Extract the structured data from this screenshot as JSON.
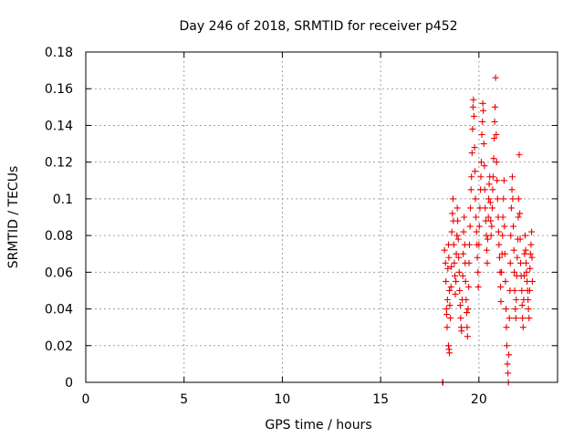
{
  "chart_data": {
    "type": "scatter",
    "title": "Day 246 of 2018, SRMTID for receiver p452",
    "xlabel": "GPS time / hours",
    "ylabel": "SRMTID / TECUs",
    "xlim": [
      0,
      24
    ],
    "ylim": [
      0,
      0.18
    ],
    "xticks": [
      0,
      5,
      10,
      15,
      20
    ],
    "xtick_labels": [
      "0",
      "5",
      "10",
      "15",
      "20"
    ],
    "yticks": [
      0,
      0.02,
      0.04,
      0.06,
      0.08,
      0.1,
      0.12,
      0.14,
      0.16,
      0.18
    ],
    "ytick_labels": [
      "0",
      "0.02",
      "0.04",
      "0.06",
      "0.08",
      "0.1",
      "0.12",
      "0.14",
      "0.16",
      "0.18"
    ],
    "grid": true,
    "marker": "plus",
    "color": "#ee0000",
    "series": [
      {
        "name": "SRMTID",
        "points": [
          [
            18.15,
            0.0
          ],
          [
            18.17,
            0.0
          ],
          [
            18.25,
            0.072
          ],
          [
            18.3,
            0.065
          ],
          [
            18.32,
            0.055
          ],
          [
            18.35,
            0.04
          ],
          [
            18.36,
            0.037
          ],
          [
            18.38,
            0.03
          ],
          [
            18.4,
            0.045
          ],
          [
            18.42,
            0.062
          ],
          [
            18.45,
            0.075
          ],
          [
            18.47,
            0.068
          ],
          [
            18.5,
            0.05
          ],
          [
            18.52,
            0.042
          ],
          [
            18.45,
            0.02
          ],
          [
            18.48,
            0.018
          ],
          [
            18.5,
            0.016
          ],
          [
            18.55,
            0.035
          ],
          [
            18.58,
            0.052
          ],
          [
            18.6,
            0.063
          ],
          [
            18.62,
            0.082
          ],
          [
            18.65,
            0.092
          ],
          [
            18.68,
            0.1
          ],
          [
            18.7,
            0.088
          ],
          [
            18.72,
            0.075
          ],
          [
            18.75,
            0.065
          ],
          [
            18.78,
            0.058
          ],
          [
            18.8,
            0.048
          ],
          [
            18.83,
            0.055
          ],
          [
            18.85,
            0.07
          ],
          [
            18.88,
            0.08
          ],
          [
            18.9,
            0.095
          ],
          [
            18.92,
            0.088
          ],
          [
            18.95,
            0.078
          ],
          [
            18.97,
            0.068
          ],
          [
            19.0,
            0.06
          ],
          [
            19.02,
            0.05
          ],
          [
            19.05,
            0.042
          ],
          [
            19.07,
            0.035
          ],
          [
            19.1,
            0.03
          ],
          [
            19.12,
            0.028
          ],
          [
            19.15,
            0.045
          ],
          [
            19.18,
            0.058
          ],
          [
            19.2,
            0.07
          ],
          [
            19.22,
            0.082
          ],
          [
            19.25,
            0.09
          ],
          [
            19.28,
            0.075
          ],
          [
            19.3,
            0.065
          ],
          [
            19.32,
            0.055
          ],
          [
            19.35,
            0.045
          ],
          [
            19.38,
            0.038
          ],
          [
            19.4,
            0.03
          ],
          [
            19.42,
            0.025
          ],
          [
            19.45,
            0.04
          ],
          [
            19.48,
            0.052
          ],
          [
            19.5,
            0.065
          ],
          [
            19.52,
            0.075
          ],
          [
            19.55,
            0.085
          ],
          [
            19.57,
            0.095
          ],
          [
            19.6,
            0.105
          ],
          [
            19.62,
            0.112
          ],
          [
            19.65,
            0.125
          ],
          [
            19.68,
            0.138
          ],
          [
            19.7,
            0.15
          ],
          [
            19.72,
            0.154
          ],
          [
            19.75,
            0.145
          ],
          [
            19.78,
            0.128
          ],
          [
            19.8,
            0.115
          ],
          [
            19.82,
            0.1
          ],
          [
            19.85,
            0.09
          ],
          [
            19.88,
            0.082
          ],
          [
            19.9,
            0.075
          ],
          [
            19.92,
            0.068
          ],
          [
            19.95,
            0.06
          ],
          [
            19.97,
            0.052
          ],
          [
            20.0,
            0.075
          ],
          [
            20.02,
            0.085
          ],
          [
            20.05,
            0.095
          ],
          [
            20.08,
            0.105
          ],
          [
            20.1,
            0.112
          ],
          [
            20.12,
            0.12
          ],
          [
            20.15,
            0.135
          ],
          [
            20.18,
            0.142
          ],
          [
            20.2,
            0.152
          ],
          [
            20.22,
            0.148
          ],
          [
            20.25,
            0.13
          ],
          [
            20.28,
            0.118
          ],
          [
            20.3,
            0.105
          ],
          [
            20.32,
            0.095
          ],
          [
            20.35,
            0.088
          ],
          [
            20.38,
            0.08
          ],
          [
            20.4,
            0.072
          ],
          [
            20.42,
            0.065
          ],
          [
            20.45,
            0.078
          ],
          [
            20.48,
            0.09
          ],
          [
            20.5,
            0.1
          ],
          [
            20.52,
            0.108
          ],
          [
            20.55,
            0.112
          ],
          [
            20.58,
            0.098
          ],
          [
            20.6,
            0.088
          ],
          [
            20.62,
            0.08
          ],
          [
            20.65,
            0.085
          ],
          [
            20.68,
            0.095
          ],
          [
            20.7,
            0.105
          ],
          [
            20.72,
            0.112
          ],
          [
            20.75,
            0.122
          ],
          [
            20.78,
            0.133
          ],
          [
            20.8,
            0.142
          ],
          [
            20.82,
            0.15
          ],
          [
            20.85,
            0.166
          ],
          [
            20.88,
            0.135
          ],
          [
            20.9,
            0.12
          ],
          [
            20.92,
            0.11
          ],
          [
            20.95,
            0.1
          ],
          [
            20.98,
            0.09
          ],
          [
            21.0,
            0.082
          ],
          [
            21.02,
            0.075
          ],
          [
            21.05,
            0.068
          ],
          [
            21.08,
            0.06
          ],
          [
            21.1,
            0.052
          ],
          [
            21.12,
            0.044
          ],
          [
            21.15,
            0.06
          ],
          [
            21.18,
            0.07
          ],
          [
            21.2,
            0.08
          ],
          [
            21.22,
            0.09
          ],
          [
            21.25,
            0.1
          ],
          [
            21.28,
            0.11
          ],
          [
            21.3,
            0.085
          ],
          [
            21.32,
            0.07
          ],
          [
            21.35,
            0.055
          ],
          [
            21.38,
            0.04
          ],
          [
            21.4,
            0.03
          ],
          [
            21.42,
            0.02
          ],
          [
            21.45,
            0.01
          ],
          [
            21.48,
            0.005
          ],
          [
            21.5,
            0.0
          ],
          [
            21.52,
            0.015
          ],
          [
            21.55,
            0.035
          ],
          [
            21.58,
            0.05
          ],
          [
            21.6,
            0.065
          ],
          [
            21.62,
            0.08
          ],
          [
            21.65,
            0.095
          ],
          [
            21.68,
            0.105
          ],
          [
            21.7,
            0.112
          ],
          [
            21.72,
            0.1
          ],
          [
            21.75,
            0.085
          ],
          [
            21.78,
            0.072
          ],
          [
            21.8,
            0.06
          ],
          [
            21.82,
            0.05
          ],
          [
            21.85,
            0.04
          ],
          [
            21.88,
            0.035
          ],
          [
            21.9,
            0.045
          ],
          [
            21.92,
            0.058
          ],
          [
            21.95,
            0.068
          ],
          [
            21.98,
            0.078
          ],
          [
            22.0,
            0.09
          ],
          [
            22.02,
            0.1
          ],
          [
            22.05,
            0.124
          ],
          [
            22.08,
            0.092
          ],
          [
            22.1,
            0.078
          ],
          [
            22.12,
            0.065
          ],
          [
            22.15,
            0.058
          ],
          [
            22.18,
            0.05
          ],
          [
            22.2,
            0.042
          ],
          [
            22.22,
            0.035
          ],
          [
            22.25,
            0.03
          ],
          [
            22.28,
            0.045
          ],
          [
            22.3,
            0.058
          ],
          [
            22.32,
            0.07
          ],
          [
            22.35,
            0.08
          ],
          [
            22.38,
            0.072
          ],
          [
            22.4,
            0.065
          ],
          [
            22.42,
            0.06
          ],
          [
            22.45,
            0.055
          ],
          [
            22.48,
            0.05
          ],
          [
            22.5,
            0.045
          ],
          [
            22.52,
            0.04
          ],
          [
            22.55,
            0.035
          ],
          [
            22.58,
            0.05
          ],
          [
            22.6,
            0.062
          ],
          [
            22.62,
            0.07
          ],
          [
            22.65,
            0.075
          ],
          [
            22.68,
            0.082
          ],
          [
            22.7,
            0.068
          ],
          [
            22.72,
            0.055
          ]
        ]
      }
    ]
  }
}
